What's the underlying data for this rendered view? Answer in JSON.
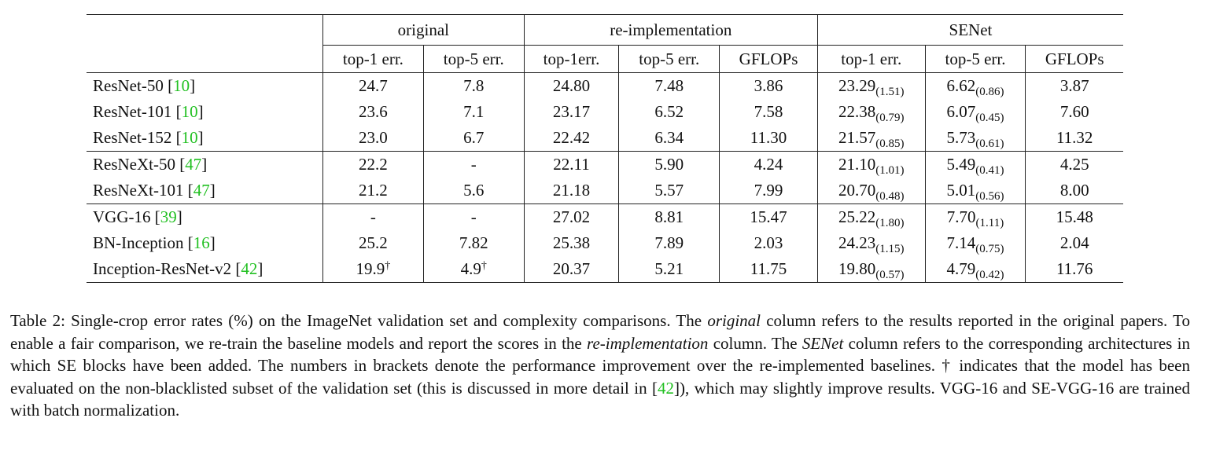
{
  "table": {
    "groups": {
      "original": "original",
      "reimpl": "re-implementation",
      "senet": "SENet"
    },
    "subheaders": {
      "orig_top1": "top-1 err.",
      "orig_top5": "top-5 err.",
      "re_top1": "top-1err.",
      "re_top5": "top-5 err.",
      "re_gflops": "GFLOPs",
      "se_top1": "top-1 err.",
      "se_top5": "top-5 err.",
      "se_gflops": "GFLOPs"
    },
    "rows": [
      {
        "model": "ResNet-50 [",
        "cite": "10",
        "close": "]",
        "orig_top1": "24.7",
        "orig_top1_mark": "",
        "orig_top5": "7.8",
        "orig_top5_mark": "",
        "re_top1": "24.80",
        "re_top5": "7.48",
        "re_gflops": "3.86",
        "se_top1": "23.29",
        "se_top1_imp": "(1.51)",
        "se_top5": "6.62",
        "se_top5_imp": "(0.86)",
        "se_gflops": "3.87"
      },
      {
        "model": "ResNet-101 [",
        "cite": "10",
        "close": "]",
        "orig_top1": "23.6",
        "orig_top1_mark": "",
        "orig_top5": "7.1",
        "orig_top5_mark": "",
        "re_top1": "23.17",
        "re_top5": "6.52",
        "re_gflops": "7.58",
        "se_top1": "22.38",
        "se_top1_imp": "(0.79)",
        "se_top5": "6.07",
        "se_top5_imp": "(0.45)",
        "se_gflops": "7.60"
      },
      {
        "model": "ResNet-152 [",
        "cite": "10",
        "close": "]",
        "orig_top1": "23.0",
        "orig_top1_mark": "",
        "orig_top5": "6.7",
        "orig_top5_mark": "",
        "re_top1": "22.42",
        "re_top5": "6.34",
        "re_gflops": "11.30",
        "se_top1": "21.57",
        "se_top1_imp": "(0.85)",
        "se_top5": "5.73",
        "se_top5_imp": "(0.61)",
        "se_gflops": "11.32"
      },
      {
        "model": "ResNeXt-50 [",
        "cite": "47",
        "close": "]",
        "orig_top1": "22.2",
        "orig_top1_mark": "",
        "orig_top5": "-",
        "orig_top5_mark": "",
        "re_top1": "22.11",
        "re_top5": "5.90",
        "re_gflops": "4.24",
        "se_top1": "21.10",
        "se_top1_imp": "(1.01)",
        "se_top5": "5.49",
        "se_top5_imp": "(0.41)",
        "se_gflops": "4.25"
      },
      {
        "model": "ResNeXt-101 [",
        "cite": "47",
        "close": "]",
        "orig_top1": "21.2",
        "orig_top1_mark": "",
        "orig_top5": "5.6",
        "orig_top5_mark": "",
        "re_top1": "21.18",
        "re_top5": "5.57",
        "re_gflops": "7.99",
        "se_top1": "20.70",
        "se_top1_imp": "(0.48)",
        "se_top5": "5.01",
        "se_top5_imp": "(0.56)",
        "se_gflops": "8.00"
      },
      {
        "model": "VGG-16 [",
        "cite": "39",
        "close": "]",
        "orig_top1": "-",
        "orig_top1_mark": "",
        "orig_top5": "-",
        "orig_top5_mark": "",
        "re_top1": "27.02",
        "re_top5": "8.81",
        "re_gflops": "15.47",
        "se_top1": "25.22",
        "se_top1_imp": "(1.80)",
        "se_top5": "7.70",
        "se_top5_imp": "(1.11)",
        "se_gflops": "15.48"
      },
      {
        "model": "BN-Inception [",
        "cite": "16",
        "close": "]",
        "orig_top1": "25.2",
        "orig_top1_mark": "",
        "orig_top5": "7.82",
        "orig_top5_mark": "",
        "re_top1": "25.38",
        "re_top5": "7.89",
        "re_gflops": "2.03",
        "se_top1": "24.23",
        "se_top1_imp": "(1.15)",
        "se_top5": "7.14",
        "se_top5_imp": "(0.75)",
        "se_gflops": "2.04"
      },
      {
        "model": "Inception-ResNet-v2 [",
        "cite": "42",
        "close": "]",
        "orig_top1": "19.9",
        "orig_top1_mark": "†",
        "orig_top5": "4.9",
        "orig_top5_mark": "†",
        "re_top1": "20.37",
        "re_top5": "5.21",
        "re_gflops": "11.75",
        "se_top1": "19.80",
        "se_top1_imp": "(0.57)",
        "se_top5": "4.79",
        "se_top5_imp": "(0.42)",
        "se_gflops": "11.76"
      }
    ]
  },
  "caption": {
    "t1": "Table 2: Single-crop error rates (%) on the ImageNet validation set and complexity comparisons. The ",
    "e1": "original",
    "t2": " column refers to the results reported in the original papers. To enable a fair comparison, we re-train the baseline models and report the scores in the ",
    "e2": "re-implementation",
    "t3": " column. The ",
    "e3": "SENet",
    "t4": " column refers to the corresponding architectures in which SE blocks have been added. The numbers in brackets denote the performance improvement over the re-implemented baselines. † indicates that the model has been evaluated on the non-blacklisted subset of the validation set (this is discussed in more detail in [",
    "cite": "42",
    "t5": "]), which may slightly improve results. VGG-16 and SE-VGG-16 are trained with batch normalization."
  }
}
